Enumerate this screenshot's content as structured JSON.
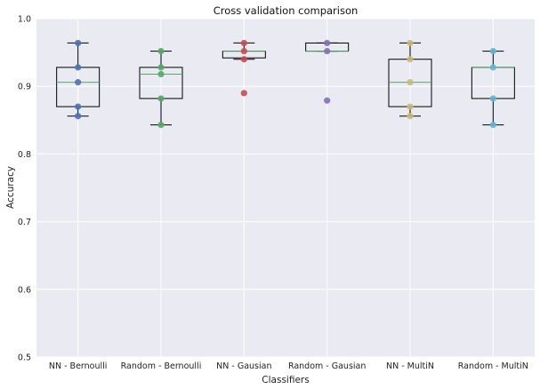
{
  "chart_data": {
    "type": "box",
    "title": "Cross validation comparison",
    "xlabel": "Classifiers",
    "ylabel": "Accuracy",
    "ylim": [
      0.5,
      1.0
    ],
    "yticks": [
      "0.5",
      "0.6",
      "0.7",
      "0.8",
      "0.9",
      "1.0"
    ],
    "grid": true,
    "categories": [
      "NN - Bernoulli",
      "Random - Bernoulli",
      "NN - Gausian",
      "Random - Gausian",
      "NN - MultiN",
      "Random - MultiN"
    ],
    "boxes": [
      {
        "whisker_low": 0.856,
        "q1": 0.87,
        "median": 0.906,
        "q3": 0.928,
        "whisker_high": 0.964
      },
      {
        "whisker_low": 0.843,
        "q1": 0.882,
        "median": 0.918,
        "q3": 0.928,
        "whisker_high": 0.952
      },
      {
        "whisker_low": 0.94,
        "q1": 0.942,
        "median": 0.952,
        "q3": 0.952,
        "whisker_high": 0.964
      },
      {
        "whisker_low": 0.952,
        "q1": 0.952,
        "median": 0.952,
        "q3": 0.964,
        "whisker_high": 0.964
      },
      {
        "whisker_low": 0.856,
        "q1": 0.87,
        "median": 0.906,
        "q3": 0.94,
        "whisker_high": 0.964
      },
      {
        "whisker_low": 0.843,
        "q1": 0.882,
        "median": 0.928,
        "q3": 0.928,
        "whisker_high": 0.952
      }
    ],
    "points": [
      [
        0.964,
        0.928,
        0.906,
        0.87,
        0.856
      ],
      [
        0.952,
        0.928,
        0.918,
        0.882,
        0.843
      ],
      [
        0.964,
        0.952,
        0.94,
        0.89
      ],
      [
        0.964,
        0.952,
        0.879
      ],
      [
        0.964,
        0.94,
        0.906,
        0.87,
        0.856
      ],
      [
        0.952,
        0.928,
        0.882,
        0.843
      ]
    ],
    "point_colors": [
      "#4c72b0",
      "#55a868",
      "#c44e52",
      "#8172b2",
      "#ccb974",
      "#64b5cd"
    ],
    "colors": {
      "background": "#eaeaf2",
      "grid": "#ffffff",
      "box": "#000000",
      "median": "#55a868"
    }
  }
}
